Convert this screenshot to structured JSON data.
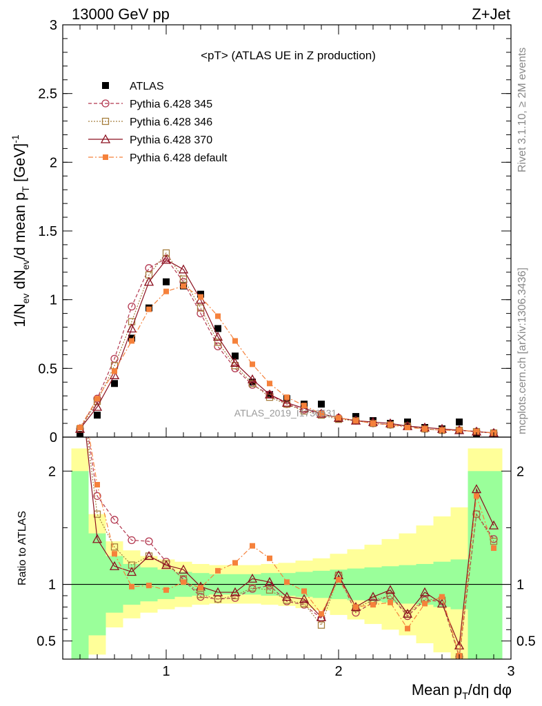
{
  "header": {
    "left": "13000 GeV pp",
    "right": "Z+Jet"
  },
  "side_labels": {
    "rivet": "Rivet 3.1.10, ≥ 2M events",
    "mcplots": "mcplots.cern.ch [arXiv:1306.3436]"
  },
  "watermark": "ATLAS_2019_I1736531",
  "colors": {
    "atlas": "#000000",
    "p345": "#b2364e",
    "p346": "#a57d3c",
    "p370": "#8b0f1e",
    "pdef": "#f5813b",
    "band_inner": "#9aff9a",
    "band_outer": "#ffff99"
  },
  "chart_data": [
    {
      "type": "line",
      "title": "<pT> (ATLAS UE in Z production)",
      "ylabel": "1/N_ev dN_ev/d mean p_T [GeV]^-1",
      "ylim": [
        0,
        3
      ],
      "yticks": [
        "0",
        "0.5",
        "1",
        "1.5",
        "2",
        "2.5",
        "3"
      ],
      "x": [
        0.5,
        0.6,
        0.7,
        0.8,
        0.9,
        1.0,
        1.1,
        1.2,
        1.3,
        1.4,
        1.5,
        1.6,
        1.7,
        1.8,
        1.9,
        2.0,
        2.1,
        2.2,
        2.3,
        2.4,
        2.5,
        2.6,
        2.7,
        2.8,
        2.9
      ],
      "series": [
        {
          "name": "ATLAS",
          "key": "atlas",
          "style": "square-filled",
          "values": [
            0.02,
            0.16,
            0.39,
            0.72,
            0.94,
            1.13,
            1.1,
            1.04,
            0.79,
            0.59,
            0.4,
            0.31,
            0.28,
            0.24,
            0.24,
            0.13,
            0.15,
            0.12,
            0.1,
            0.11,
            0.07,
            0.06,
            0.11,
            0.02,
            0.02
          ]
        },
        {
          "name": "Pythia 6.428 345",
          "key": "p345",
          "style": "circle-open-dashed",
          "values": [
            0.06,
            0.28,
            0.57,
            0.95,
            1.23,
            1.3,
            1.13,
            0.9,
            0.66,
            0.5,
            0.38,
            0.31,
            0.24,
            0.2,
            0.17,
            0.14,
            0.12,
            0.1,
            0.09,
            0.08,
            0.06,
            0.05,
            0.05,
            0.04,
            0.03
          ]
        },
        {
          "name": "Pythia 6.428 346",
          "key": "p346",
          "style": "square-open-dotted",
          "values": [
            0.06,
            0.26,
            0.52,
            0.84,
            1.18,
            1.34,
            1.15,
            0.94,
            0.69,
            0.52,
            0.39,
            0.29,
            0.24,
            0.19,
            0.16,
            0.13,
            0.12,
            0.1,
            0.09,
            0.08,
            0.06,
            0.05,
            0.05,
            0.04,
            0.03
          ]
        },
        {
          "name": "Pythia 6.428 370",
          "key": "p370",
          "style": "triangle-open-solid",
          "values": [
            0.06,
            0.22,
            0.45,
            0.79,
            1.13,
            1.29,
            1.22,
            1.0,
            0.73,
            0.54,
            0.42,
            0.31,
            0.25,
            0.21,
            0.17,
            0.14,
            0.12,
            0.11,
            0.1,
            0.08,
            0.07,
            0.06,
            0.05,
            0.04,
            0.03
          ]
        },
        {
          "name": "Pythia 6.428 default",
          "key": "pdef",
          "style": "square-filled-dashdot",
          "values": [
            0.07,
            0.28,
            0.48,
            0.7,
            0.93,
            1.06,
            1.1,
            1.02,
            0.88,
            0.7,
            0.53,
            0.39,
            0.29,
            0.23,
            0.17,
            0.14,
            0.12,
            0.1,
            0.09,
            0.07,
            0.06,
            0.05,
            0.05,
            0.04,
            0.03
          ]
        }
      ]
    },
    {
      "type": "line",
      "ylabel": "Ratio to ATLAS",
      "xlabel": "Mean p_T/dη dφ",
      "xlim": [
        0.4,
        3.0
      ],
      "ylim": [
        0.34,
        2.3
      ],
      "xticks": [
        "1",
        "2",
        "3"
      ],
      "yticks": [
        "0.5",
        "1",
        "2"
      ],
      "x": [
        0.5,
        0.6,
        0.7,
        0.8,
        0.9,
        1.0,
        1.1,
        1.2,
        1.3,
        1.4,
        1.5,
        1.6,
        1.7,
        1.8,
        1.9,
        2.0,
        2.1,
        2.2,
        2.3,
        2.4,
        2.5,
        2.6,
        2.7,
        2.8,
        2.9
      ],
      "band_inner_halfwidth": [
        1.0,
        0.45,
        0.25,
        0.18,
        0.15,
        0.13,
        0.11,
        0.1,
        0.09,
        0.09,
        0.09,
        0.1,
        0.1,
        0.11,
        0.12,
        0.13,
        0.14,
        0.15,
        0.16,
        0.17,
        0.18,
        0.2,
        0.22,
        1.0,
        1.0
      ],
      "band_outer_halfwidth": [
        1.2,
        0.62,
        0.38,
        0.3,
        0.25,
        0.22,
        0.2,
        0.18,
        0.17,
        0.17,
        0.17,
        0.18,
        0.19,
        0.21,
        0.23,
        0.27,
        0.31,
        0.35,
        0.4,
        0.45,
        0.52,
        0.6,
        0.68,
        1.2,
        1.2
      ],
      "series": [
        {
          "name": "Pythia 6.428 345",
          "key": "p345",
          "style": "circle-open-dashed",
          "values": [
            2.8,
            1.78,
            1.57,
            1.39,
            1.38,
            1.2,
            1.04,
            0.89,
            0.87,
            0.88,
            0.96,
            0.99,
            0.85,
            0.82,
            0.7,
            1.08,
            0.75,
            0.84,
            0.9,
            0.72,
            0.86,
            0.85,
            0.36,
            1.62,
            1.4
          ]
        },
        {
          "name": "Pythia 6.428 346",
          "key": "p346",
          "style": "square-open-dotted",
          "values": [
            2.8,
            1.62,
            1.33,
            1.17,
            1.25,
            1.18,
            1.05,
            0.91,
            0.87,
            0.9,
            0.97,
            0.95,
            0.86,
            0.83,
            0.64,
            1.08,
            0.79,
            0.86,
            0.9,
            0.74,
            0.87,
            0.86,
            0.36,
            1.62,
            1.38
          ]
        },
        {
          "name": "Pythia 6.428 370",
          "key": "p370",
          "style": "triangle-open-solid",
          "values": [
            2.8,
            1.4,
            1.16,
            1.11,
            1.25,
            1.17,
            1.13,
            0.98,
            0.93,
            0.93,
            1.05,
            1.02,
            0.89,
            0.87,
            0.71,
            1.08,
            0.8,
            0.89,
            0.95,
            0.74,
            0.93,
            0.83,
            0.46,
            1.84,
            1.52
          ]
        },
        {
          "name": "Pythia 6.428 default",
          "key": "pdef",
          "style": "square-filled-dashdot",
          "values": [
            2.8,
            1.88,
            1.27,
            0.98,
            0.99,
            0.95,
            1.02,
            0.97,
            1.12,
            1.19,
            1.34,
            1.23,
            1.02,
            0.94,
            0.74,
            1.04,
            0.8,
            0.82,
            0.84,
            0.61,
            0.83,
            0.89,
            0.37,
            1.78,
            1.32
          ]
        }
      ]
    }
  ]
}
